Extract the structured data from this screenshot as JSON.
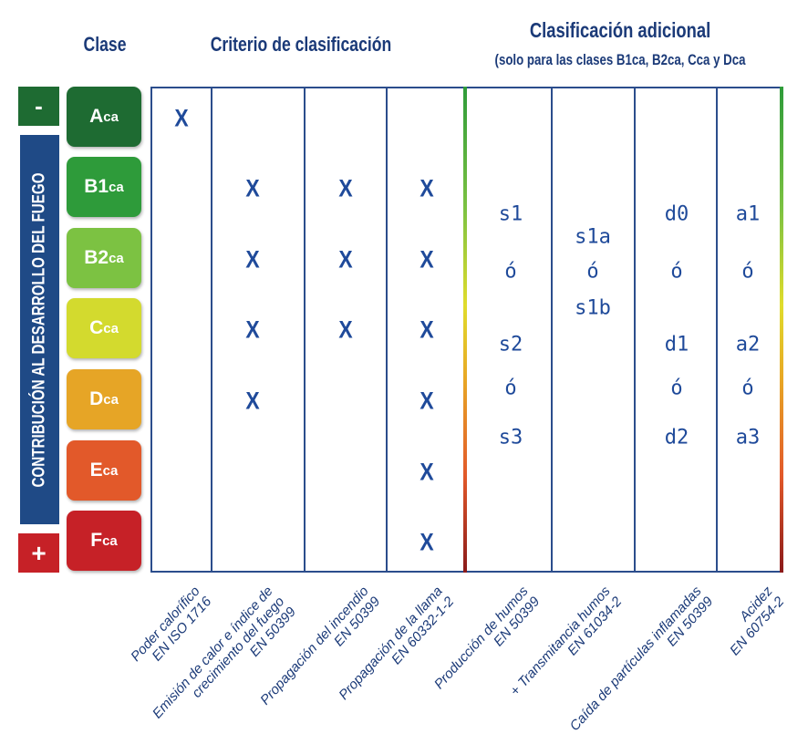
{
  "headers": {
    "clase": "Clase",
    "criterio": "Criterio de clasificación",
    "adicional": "Clasificación adicional",
    "adicional_sub": "(solo para las clases B1ca, B2ca, Cca y Dca"
  },
  "axis": {
    "label": "CONTRIBUCIÓN AL DESARROLLO DEL FUEGO",
    "minus": "-",
    "plus": "+"
  },
  "classes": [
    {
      "main": "A",
      "sub": "ca",
      "color": "#1e6b32"
    },
    {
      "main": "B1",
      "sub": "ca",
      "color": "#2e9b3a"
    },
    {
      "main": "B2",
      "sub": "ca",
      "color": "#7cc242"
    },
    {
      "main": "C",
      "sub": "ca",
      "color": "#d3da2e"
    },
    {
      "main": "D",
      "sub": "ca",
      "color": "#e6a526"
    },
    {
      "main": "E",
      "sub": "ca",
      "color": "#e2592a"
    },
    {
      "main": "F",
      "sub": "ca",
      "color": "#c62127"
    }
  ],
  "columns": [
    {
      "label": [
        "Poder calorífico",
        "EN ISO 1716"
      ],
      "marks": [
        "A"
      ]
    },
    {
      "label": [
        "Emisión de calor e índice de",
        "crecimiento del fuego",
        "EN 50399"
      ],
      "marks": [
        "B1",
        "B2",
        "C",
        "D"
      ]
    },
    {
      "label": [
        "Propagación del incendio",
        "EN 50399"
      ],
      "marks": [
        "B1",
        "B2",
        "C"
      ]
    },
    {
      "label": [
        "Propagación de la llama",
        "EN 60332-1-2"
      ],
      "marks": [
        "B1",
        "B2",
        "C",
        "D",
        "E",
        "F"
      ]
    },
    {
      "label": [
        "Producción de humos",
        "EN 50399"
      ],
      "values": [
        "s1",
        "ó",
        "s2",
        "ó",
        "s3"
      ]
    },
    {
      "label": [
        "+ Transmitancia humos",
        "EN 61034-2"
      ],
      "values": [
        "s1a",
        "ó",
        "s1b"
      ]
    },
    {
      "label": [
        "Caída de partículas inflamadas",
        "EN 50399"
      ],
      "values": [
        "d0",
        "ó",
        "d1",
        "ó",
        "d2"
      ]
    },
    {
      "label": [
        "Acidez",
        "EN 60754-2"
      ],
      "values": [
        "a1",
        "ó",
        "a2",
        "ó",
        "a3"
      ]
    }
  ],
  "mark_symbol": "X"
}
